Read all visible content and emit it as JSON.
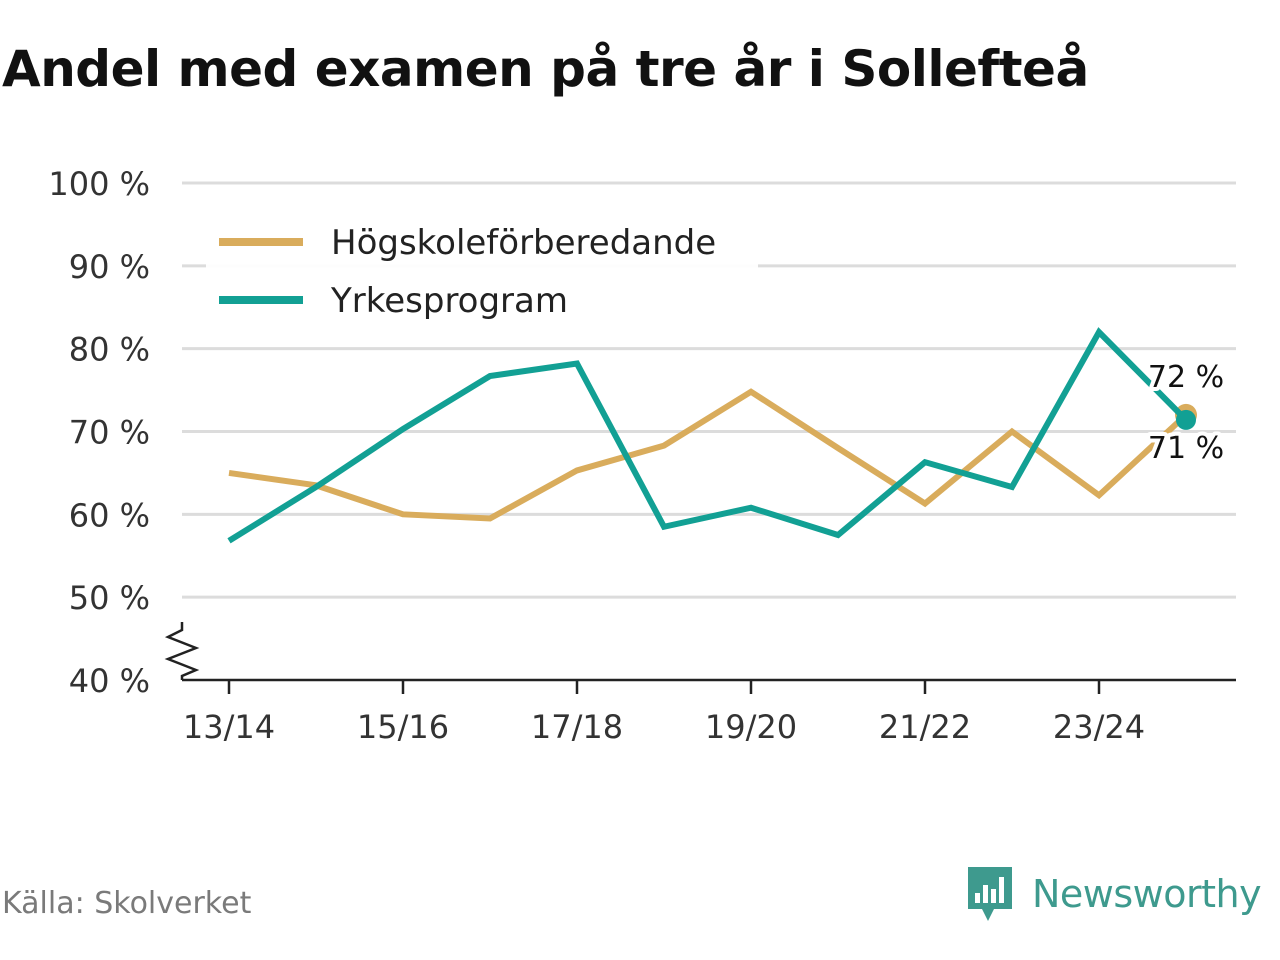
{
  "title": "Andel med examen på tre år i Sollefteå",
  "source": "Källa: Skolverket",
  "brand": {
    "name": "Newsworthy",
    "icon": "newsworthy-logo-icon",
    "color": "#3e9a8e"
  },
  "chart_data": {
    "type": "line",
    "x": [
      "13/14",
      "14/15",
      "15/16",
      "16/17",
      "17/18",
      "18/19",
      "19/20",
      "20/21",
      "21/22",
      "22/23",
      "23/24",
      "24/25"
    ],
    "x_tick_labels": [
      "13/14",
      "15/16",
      "17/18",
      "19/20",
      "21/22",
      "23/24"
    ],
    "ylim": [
      40,
      100
    ],
    "y_ticks": [
      40,
      50,
      60,
      70,
      80,
      90,
      100
    ],
    "y_tick_labels": [
      "40 %",
      "50 %",
      "60 %",
      "70 %",
      "80 %",
      "90 %",
      "100 %"
    ],
    "y_axis_break": true,
    "grid": true,
    "legend_position": "top-left",
    "series": [
      {
        "name": "Högskoleförberedande",
        "color": "#d9ac5c",
        "values": [
          65,
          63.5,
          60,
          59.5,
          65.3,
          68.3,
          74.8,
          68,
          61.3,
          70,
          62.3,
          72
        ],
        "end_label": "72 %"
      },
      {
        "name": "Yrkesprogram",
        "color": "#12a094",
        "values": [
          56.8,
          63.3,
          70.3,
          76.7,
          78.2,
          58.5,
          60.8,
          57.5,
          66.3,
          63.3,
          82,
          71.4
        ],
        "end_label": "71 %"
      }
    ]
  }
}
